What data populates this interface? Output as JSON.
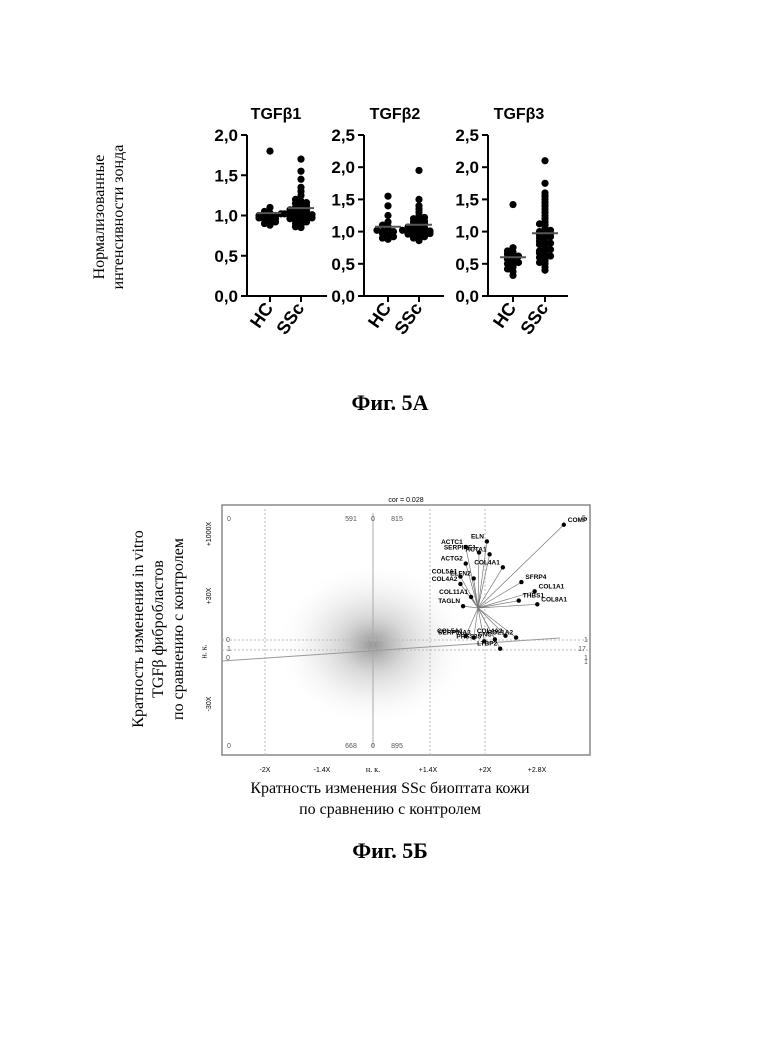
{
  "figure_5a": {
    "y_label_lines": [
      "Нормализованные",
      "интенсивности зонда"
    ],
    "caption": "Фиг. 5А"
  },
  "figure_5b": {
    "y_label_lines": [
      "Кратность изменения in vitro",
      "TGFβ фибробластов",
      "по сравнению с контролем"
    ],
    "x_label_lines": [
      "Кратность изменения SSc биоптата кожи",
      "по сравнению с контролем"
    ],
    "caption": "Фиг. 5Б",
    "side_label": "н. к.",
    "below_label": "н. к."
  },
  "chart_data": [
    {
      "type": "scatter",
      "title": "TGFβ1",
      "categories": [
        "HC",
        "SSc"
      ],
      "ylim": [
        0,
        2.0
      ],
      "yticks": [
        "0,0",
        "0,5",
        "1,0",
        "1,5",
        "2,0"
      ],
      "series": [
        {
          "category": "HC",
          "values": [
            1.8,
            1.1,
            1.05,
            1.0,
            1.0,
            0.98,
            0.97,
            0.95,
            0.93,
            0.9,
            0.88,
            0.92,
            1.02,
            0.99,
            0.96,
            1.03
          ]
        },
        {
          "category": "SSc",
          "values": [
            1.7,
            1.55,
            1.45,
            1.35,
            1.3,
            1.25,
            1.2,
            1.18,
            1.15,
            1.12,
            1.1,
            1.08,
            1.06,
            1.05,
            1.04,
            1.02,
            1.0,
            1.0,
            0.99,
            0.98,
            0.97,
            0.96,
            0.95,
            0.94,
            0.92,
            0.9,
            0.88,
            0.86,
            0.85,
            1.01,
            1.07,
            1.13,
            0.93,
            1.16
          ]
        }
      ]
    },
    {
      "type": "scatter",
      "title": "TGFβ2",
      "categories": [
        "HC",
        "SSc"
      ],
      "ylim": [
        0,
        2.5
      ],
      "yticks": [
        "0,0",
        "0,5",
        "1,0",
        "1,5",
        "2,0",
        "2,5"
      ],
      "series": [
        {
          "category": "HC",
          "values": [
            1.55,
            1.4,
            1.25,
            1.15,
            1.1,
            1.05,
            1.0,
            1.0,
            0.98,
            0.95,
            0.92,
            0.9,
            0.88,
            1.02,
            0.97,
            1.08
          ]
        },
        {
          "category": "SSc",
          "values": [
            1.95,
            1.5,
            1.4,
            1.35,
            1.3,
            1.25,
            1.2,
            1.18,
            1.15,
            1.12,
            1.1,
            1.08,
            1.06,
            1.05,
            1.04,
            1.02,
            1.0,
            1.0,
            0.99,
            0.98,
            0.97,
            0.96,
            0.95,
            0.94,
            0.92,
            0.9,
            0.88,
            0.86,
            1.01,
            1.07,
            1.13,
            0.93,
            1.16,
            1.22
          ]
        }
      ]
    },
    {
      "type": "scatter",
      "title": "TGFβ3",
      "categories": [
        "HC",
        "SSc"
      ],
      "ylim": [
        0,
        2.5
      ],
      "yticks": [
        "0,0",
        "0,5",
        "1,0",
        "1,5",
        "2,0",
        "2,5"
      ],
      "series": [
        {
          "category": "HC",
          "values": [
            1.42,
            0.75,
            0.7,
            0.68,
            0.65,
            0.63,
            0.6,
            0.58,
            0.57,
            0.55,
            0.52,
            0.5,
            0.48,
            0.45,
            0.42,
            0.38,
            0.32,
            0.62
          ]
        },
        {
          "category": "SSc",
          "values": [
            2.1,
            1.75,
            1.6,
            1.55,
            1.5,
            1.45,
            1.4,
            1.35,
            1.3,
            1.25,
            1.2,
            1.15,
            1.1,
            1.05,
            1.0,
            0.98,
            0.95,
            0.92,
            0.9,
            0.88,
            0.85,
            0.82,
            0.8,
            0.78,
            0.75,
            0.72,
            0.7,
            0.68,
            0.65,
            0.62,
            0.6,
            0.58,
            0.55,
            0.52,
            0.5,
            0.45,
            0.4,
            1.12,
            0.97,
            0.83,
            0.67,
            1.02,
            0.93
          ]
        }
      ]
    },
    {
      "type": "scatter",
      "title": "cor = 0.028",
      "xticks": [
        "-2X",
        "-1.4X",
        "н. к.",
        "+1.4X",
        "+2X",
        "+2.8X"
      ],
      "yticks": [
        "+1000X",
        "+30X",
        "-30X"
      ],
      "quadrant_counts": [
        "0",
        "591",
        "0",
        "815",
        "5",
        "668",
        "0",
        "895",
        "0",
        "0",
        "0",
        "1",
        "1",
        "17",
        "1",
        "1"
      ],
      "points": [
        {
          "label": "COMP",
          "x": 3.6,
          "y": 6.5
        },
        {
          "label": "ELN",
          "x": 2.15,
          "y": 5.6
        },
        {
          "label": "ACTC1",
          "x": 1.75,
          "y": 5.3
        },
        {
          "label": "SERPINE1",
          "x": 2.0,
          "y": 5.0
        },
        {
          "label": "ACTA1",
          "x": 2.2,
          "y": 4.9
        },
        {
          "label": "COL4A1",
          "x": 2.45,
          "y": 4.2
        },
        {
          "label": "ACTG2",
          "x": 1.75,
          "y": 4.4
        },
        {
          "label": "SFRP4",
          "x": 2.8,
          "y": 3.4
        },
        {
          "label": "COL5A1",
          "x": 1.65,
          "y": 3.7
        },
        {
          "label": "ELFN2",
          "x": 1.9,
          "y": 3.6
        },
        {
          "label": "COL4A2",
          "x": 1.65,
          "y": 3.3
        },
        {
          "label": "COL1A1",
          "x": 3.05,
          "y": 2.9
        },
        {
          "label": "THBS1",
          "x": 2.75,
          "y": 2.4
        },
        {
          "label": "COL8A1",
          "x": 3.1,
          "y": 2.2
        },
        {
          "label": "COL11A1",
          "x": 1.85,
          "y": 2.6
        },
        {
          "label": "TAGLN",
          "x": 1.7,
          "y": 2.1
        },
        {
          "label": "COL5A1",
          "x": 1.75,
          "y": 0.5
        },
        {
          "label": "SERPINA3",
          "x": 1.9,
          "y": 0.4
        },
        {
          "label": "PRSS35",
          "x": 2.1,
          "y": 0.2
        },
        {
          "label": "SNC",
          "x": 2.3,
          "y": 0.3
        },
        {
          "label": "COL4A2",
          "x": 2.5,
          "y": 0.5
        },
        {
          "label": "COL1A2",
          "x": 2.7,
          "y": 0.4
        },
        {
          "label": "LTBP2",
          "x": 2.4,
          "y": -0.2
        }
      ]
    }
  ]
}
